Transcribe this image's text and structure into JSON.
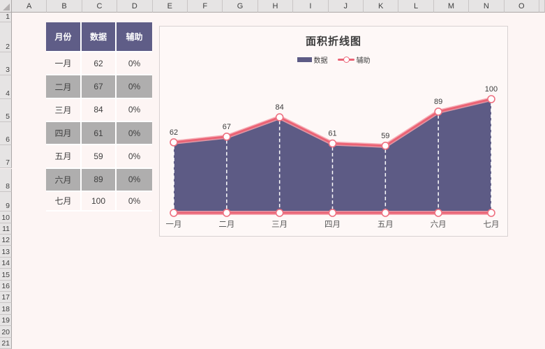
{
  "spreadsheet": {
    "column_headers": [
      "A",
      "B",
      "C",
      "D",
      "E",
      "F",
      "G",
      "H",
      "I",
      "J",
      "K",
      "L",
      "M",
      "N",
      "O"
    ],
    "row_headers": [
      "1",
      "2",
      "3",
      "4",
      "5",
      "6",
      "7",
      "8",
      "9",
      "10",
      "11",
      "12",
      "13",
      "14",
      "15",
      "16",
      "17",
      "18",
      "19",
      "20",
      "21"
    ],
    "table": {
      "headers": [
        "月份",
        "数据",
        "辅助"
      ],
      "rows": [
        [
          "一月",
          "62",
          "0%"
        ],
        [
          "二月",
          "67",
          "0%"
        ],
        [
          "三月",
          "84",
          "0%"
        ],
        [
          "四月",
          "61",
          "0%"
        ],
        [
          "五月",
          "59",
          "0%"
        ],
        [
          "六月",
          "89",
          "0%"
        ],
        [
          "七月",
          "100",
          "0%"
        ]
      ]
    }
  },
  "chart": {
    "title": "面积折线图"
  },
  "chart_data": {
    "type": "area",
    "title": "面积折线图",
    "categories": [
      "一月",
      "二月",
      "三月",
      "四月",
      "五月",
      "六月",
      "七月"
    ],
    "series": [
      {
        "name": "数据",
        "type": "area",
        "color": "#5D5B85",
        "values": [
          62,
          67,
          84,
          61,
          59,
          89,
          100
        ]
      },
      {
        "name": "辅助",
        "type": "line",
        "color": "#EB6375",
        "values": [
          0,
          0,
          0,
          0,
          0,
          0,
          0
        ]
      }
    ],
    "data_labels": [
      "62",
      "67",
      "84",
      "61",
      "59",
      "89",
      "100"
    ],
    "ylim": [
      0,
      115
    ],
    "legend_position": "top",
    "grid": false,
    "notes": "red marker line traces top of purple area; auxiliary 0% series drawn along baseline; white dashed drop lines at each point"
  },
  "icons": {
    "select_all": "triangle-bottom-right"
  },
  "colors": {
    "sheet_bg": "#FDF5F4",
    "chart_bg": "#FEF8F7",
    "chart_border": "#D8D2D2",
    "header_bg": "#E6E4E4",
    "header_text": "#3F3F3F",
    "table_header_bg": "#5F5D87",
    "table_header_text": "#FFFFFF",
    "row_stripe": "#AFAEAE",
    "area_fill": "#5D5B85",
    "line_red": "#EB6375",
    "line_glow": "#F5A2AC",
    "marker_fill": "#FFFFFF",
    "marker_stroke": "#EE7181",
    "drop_line": "#FFFFFF",
    "label_text": "#3C3C3C",
    "category_text": "#595959"
  }
}
